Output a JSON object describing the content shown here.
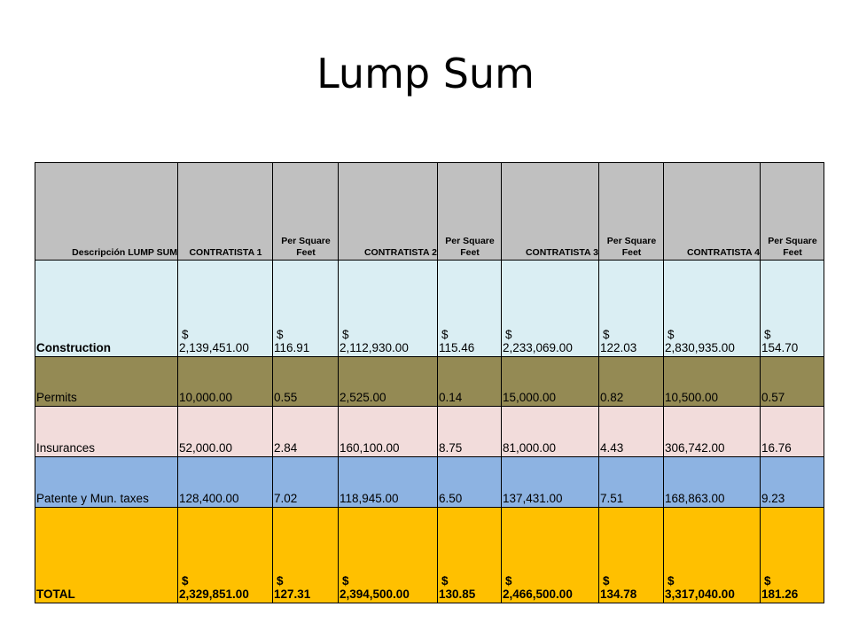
{
  "slide": {
    "title": "Lump Sum"
  },
  "table": {
    "headers": [
      "Descripción  LUMP SUM",
      "CONTRATISTA 1",
      "Per Square Feet",
      "CONTRATISTA  2",
      "Per Square Feet",
      "CONTRATISTA  3",
      "Per Square Feet",
      "CONTRATISTA  4",
      "Per Square Feet"
    ],
    "rows": [
      {
        "label": "Construction",
        "currency": "$",
        "values": [
          "2,139,451.00",
          "116.91",
          "2,112,930.00",
          "115.46",
          "2,233,069.00",
          "122.03",
          "2,830,935.00",
          "154.70"
        ],
        "bg": "#daeef3"
      },
      {
        "label": "Permits",
        "values": [
          "10,000.00",
          "0.55",
          "2,525.00",
          "0.14",
          "15,000.00",
          "0.82",
          "10,500.00",
          "0.57"
        ],
        "bg": "#948a54"
      },
      {
        "label": "Insurances",
        "values": [
          "52,000.00",
          "2.84",
          "160,100.00",
          "8.75",
          "81,000.00",
          "4.43",
          "306,742.00",
          "16.76"
        ],
        "bg": "#f2dcdb"
      },
      {
        "label": "Patente y Mun. taxes",
        "values": [
          "128,400.00",
          "7.02",
          "118,945.00",
          "6.50",
          "137,431.00",
          "7.51",
          "168,863.00",
          "9.23"
        ],
        "bg": "#8db3e2"
      },
      {
        "label": "TOTAL",
        "currency": "$",
        "values": [
          "2,329,851.00",
          "127.31",
          "2,394,500.00",
          "130.85",
          "2,466,500.00",
          "134.78",
          "3,317,040.00",
          "181.26"
        ],
        "bg": "#ffc000"
      }
    ]
  }
}
